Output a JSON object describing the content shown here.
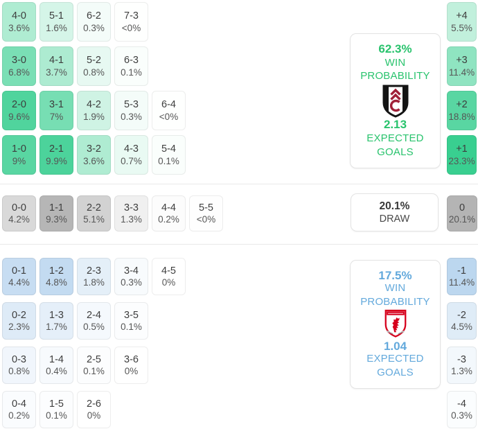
{
  "labels": {
    "win": "WIN",
    "probability": "PROBABILITY",
    "expected": "EXPECTED",
    "goals": "GOALS",
    "draw": "DRAW"
  },
  "colors": {
    "home_base": "#2ecc8a",
    "home_text": "#29c36d",
    "draw_base": "#a6a6a6",
    "away_base": "#82b4e1",
    "away_text": "#63a9dc",
    "fulham_crest_black": "#141414",
    "fulham_crest_red": "#a02038",
    "middlesbrough_crest_red": "#d6001c"
  },
  "chart_data": {
    "type": "heatmap",
    "title": "Correct-score probability matrix with win probabilities and expected goals",
    "legend_position": "right",
    "home": {
      "crest_icon": "fulham-crest",
      "panel": {
        "probability": "62.3%",
        "expected_goals": "2.13"
      },
      "rows": [
        [
          {
            "s": "4-0",
            "p": "3.6%",
            "v": 3.6
          },
          {
            "s": "5-1",
            "p": "1.6%",
            "v": 1.6
          },
          {
            "s": "6-2",
            "p": "0.3%",
            "v": 0.3
          },
          {
            "s": "7-3",
            "p": "<0%",
            "v": 0.02
          }
        ],
        [
          {
            "s": "3-0",
            "p": "6.8%",
            "v": 6.8
          },
          {
            "s": "4-1",
            "p": "3.7%",
            "v": 3.7
          },
          {
            "s": "5-2",
            "p": "0.8%",
            "v": 0.8
          },
          {
            "s": "6-3",
            "p": "0.1%",
            "v": 0.1
          }
        ],
        [
          {
            "s": "2-0",
            "p": "9.6%",
            "v": 9.6
          },
          {
            "s": "3-1",
            "p": "7%",
            "v": 7.0
          },
          {
            "s": "4-2",
            "p": "1.9%",
            "v": 1.9
          },
          {
            "s": "5-3",
            "p": "0.3%",
            "v": 0.3
          },
          {
            "s": "6-4",
            "p": "<0%",
            "v": 0.02
          }
        ],
        [
          {
            "s": "1-0",
            "p": "9%",
            "v": 9.0
          },
          {
            "s": "2-1",
            "p": "9.9%",
            "v": 9.9
          },
          {
            "s": "3-2",
            "p": "3.6%",
            "v": 3.6
          },
          {
            "s": "4-3",
            "p": "0.7%",
            "v": 0.7
          },
          {
            "s": "5-4",
            "p": "0.1%",
            "v": 0.1
          }
        ]
      ],
      "margins": [
        {
          "s": "+4",
          "p": "5.5%",
          "v": 5.5
        },
        {
          "s": "+3",
          "p": "11.4%",
          "v": 11.4
        },
        {
          "s": "+2",
          "p": "18.8%",
          "v": 18.8
        },
        {
          "s": "+1",
          "p": "23.3%",
          "v": 23.3
        }
      ]
    },
    "draw": {
      "panel": {
        "probability": "20.1%"
      },
      "cells": [
        {
          "s": "0-0",
          "p": "4.2%",
          "v": 4.2
        },
        {
          "s": "1-1",
          "p": "9.3%",
          "v": 9.3
        },
        {
          "s": "2-2",
          "p": "5.1%",
          "v": 5.1
        },
        {
          "s": "3-3",
          "p": "1.3%",
          "v": 1.3
        },
        {
          "s": "4-4",
          "p": "0.2%",
          "v": 0.2
        },
        {
          "s": "5-5",
          "p": "<0%",
          "v": 0.02
        }
      ],
      "margin": {
        "s": "0",
        "p": "20.1%",
        "v": 20.1
      }
    },
    "away": {
      "crest_icon": "middlesbrough-crest",
      "panel": {
        "probability": "17.5%",
        "expected_goals": "1.04"
      },
      "rows": [
        [
          {
            "s": "0-1",
            "p": "4.4%",
            "v": 4.4
          },
          {
            "s": "1-2",
            "p": "4.8%",
            "v": 4.8
          },
          {
            "s": "2-3",
            "p": "1.8%",
            "v": 1.8
          },
          {
            "s": "3-4",
            "p": "0.3%",
            "v": 0.3
          },
          {
            "s": "4-5",
            "p": "0%",
            "v": 0
          }
        ],
        [
          {
            "s": "0-2",
            "p": "2.3%",
            "v": 2.3
          },
          {
            "s": "1-3",
            "p": "1.7%",
            "v": 1.7
          },
          {
            "s": "2-4",
            "p": "0.5%",
            "v": 0.5
          },
          {
            "s": "3-5",
            "p": "0.1%",
            "v": 0.1
          }
        ],
        [
          {
            "s": "0-3",
            "p": "0.8%",
            "v": 0.8
          },
          {
            "s": "1-4",
            "p": "0.4%",
            "v": 0.4
          },
          {
            "s": "2-5",
            "p": "0.1%",
            "v": 0.1
          },
          {
            "s": "3-6",
            "p": "0%",
            "v": 0
          }
        ],
        [
          {
            "s": "0-4",
            "p": "0.2%",
            "v": 0.2
          },
          {
            "s": "1-5",
            "p": "0.1%",
            "v": 0.1
          },
          {
            "s": "2-6",
            "p": "0%",
            "v": 0
          }
        ]
      ],
      "margins": [
        {
          "s": "-1",
          "p": "11.4%",
          "v": 11.4
        },
        {
          "s": "-2",
          "p": "4.5%",
          "v": 4.5
        },
        {
          "s": "-3",
          "p": "1.3%",
          "v": 1.3
        },
        {
          "s": "-4",
          "p": "0.3%",
          "v": 0.3
        }
      ]
    }
  }
}
